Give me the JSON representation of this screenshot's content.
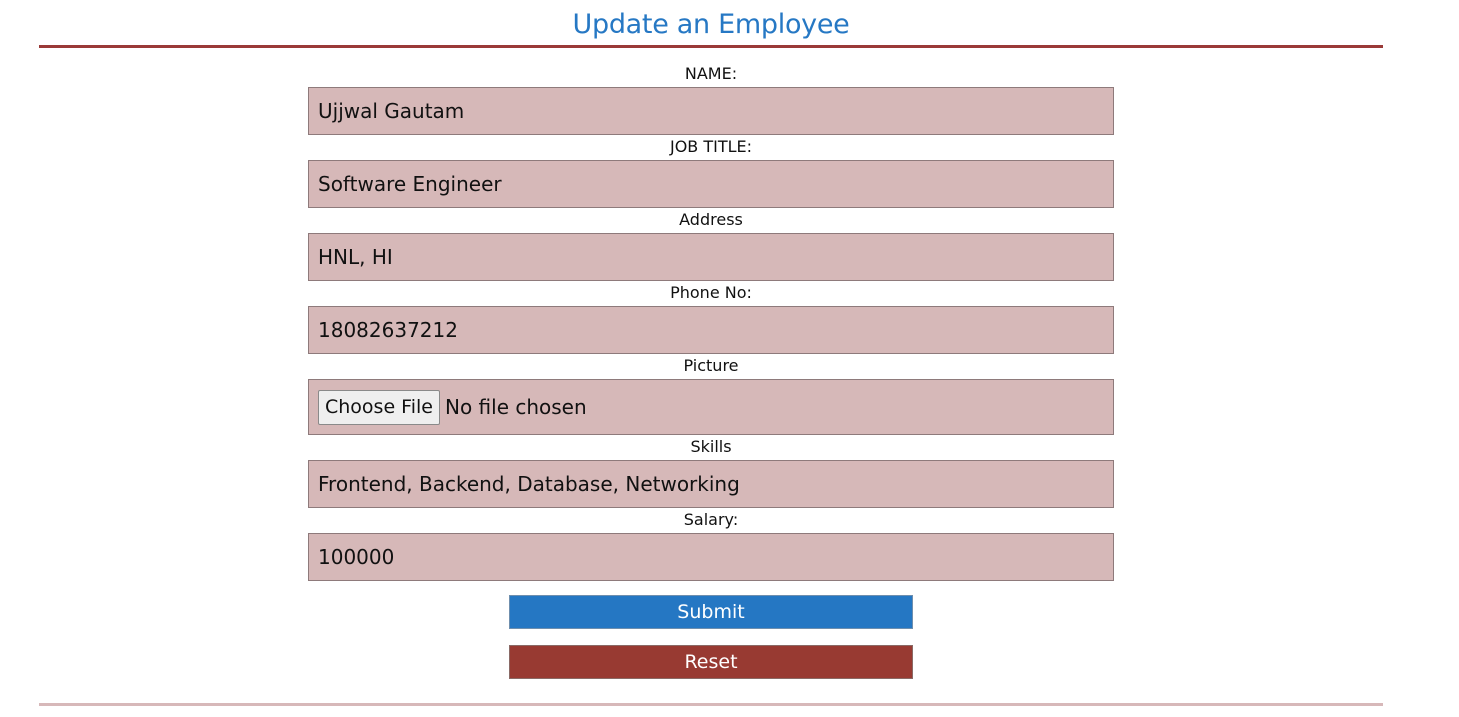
{
  "page": {
    "title": "Update an Employee"
  },
  "form": {
    "fields": [
      {
        "label": "NAME:",
        "value": "Ujjwal Gautam"
      },
      {
        "label": "JOB TITLE:",
        "value": "Software Engineer"
      },
      {
        "label": "Address",
        "value": "HNL, HI"
      },
      {
        "label": "Phone No:",
        "value": "18082637212"
      },
      {
        "label": "Picture",
        "button_label": "Choose File",
        "status": "No file chosen"
      },
      {
        "label": "Skills",
        "value": "Frontend, Backend, Database, Networking"
      },
      {
        "label": "Salary:",
        "value": "100000"
      }
    ],
    "submit_label": "Submit",
    "reset_label": "Reset"
  },
  "colors": {
    "title": "#2678c4",
    "top_rule": "#9a3a38",
    "bottom_rule": "#d7b8b9",
    "input_background": "#d6b8b8",
    "submit_background": "#2577c3",
    "reset_background": "#983a32"
  }
}
